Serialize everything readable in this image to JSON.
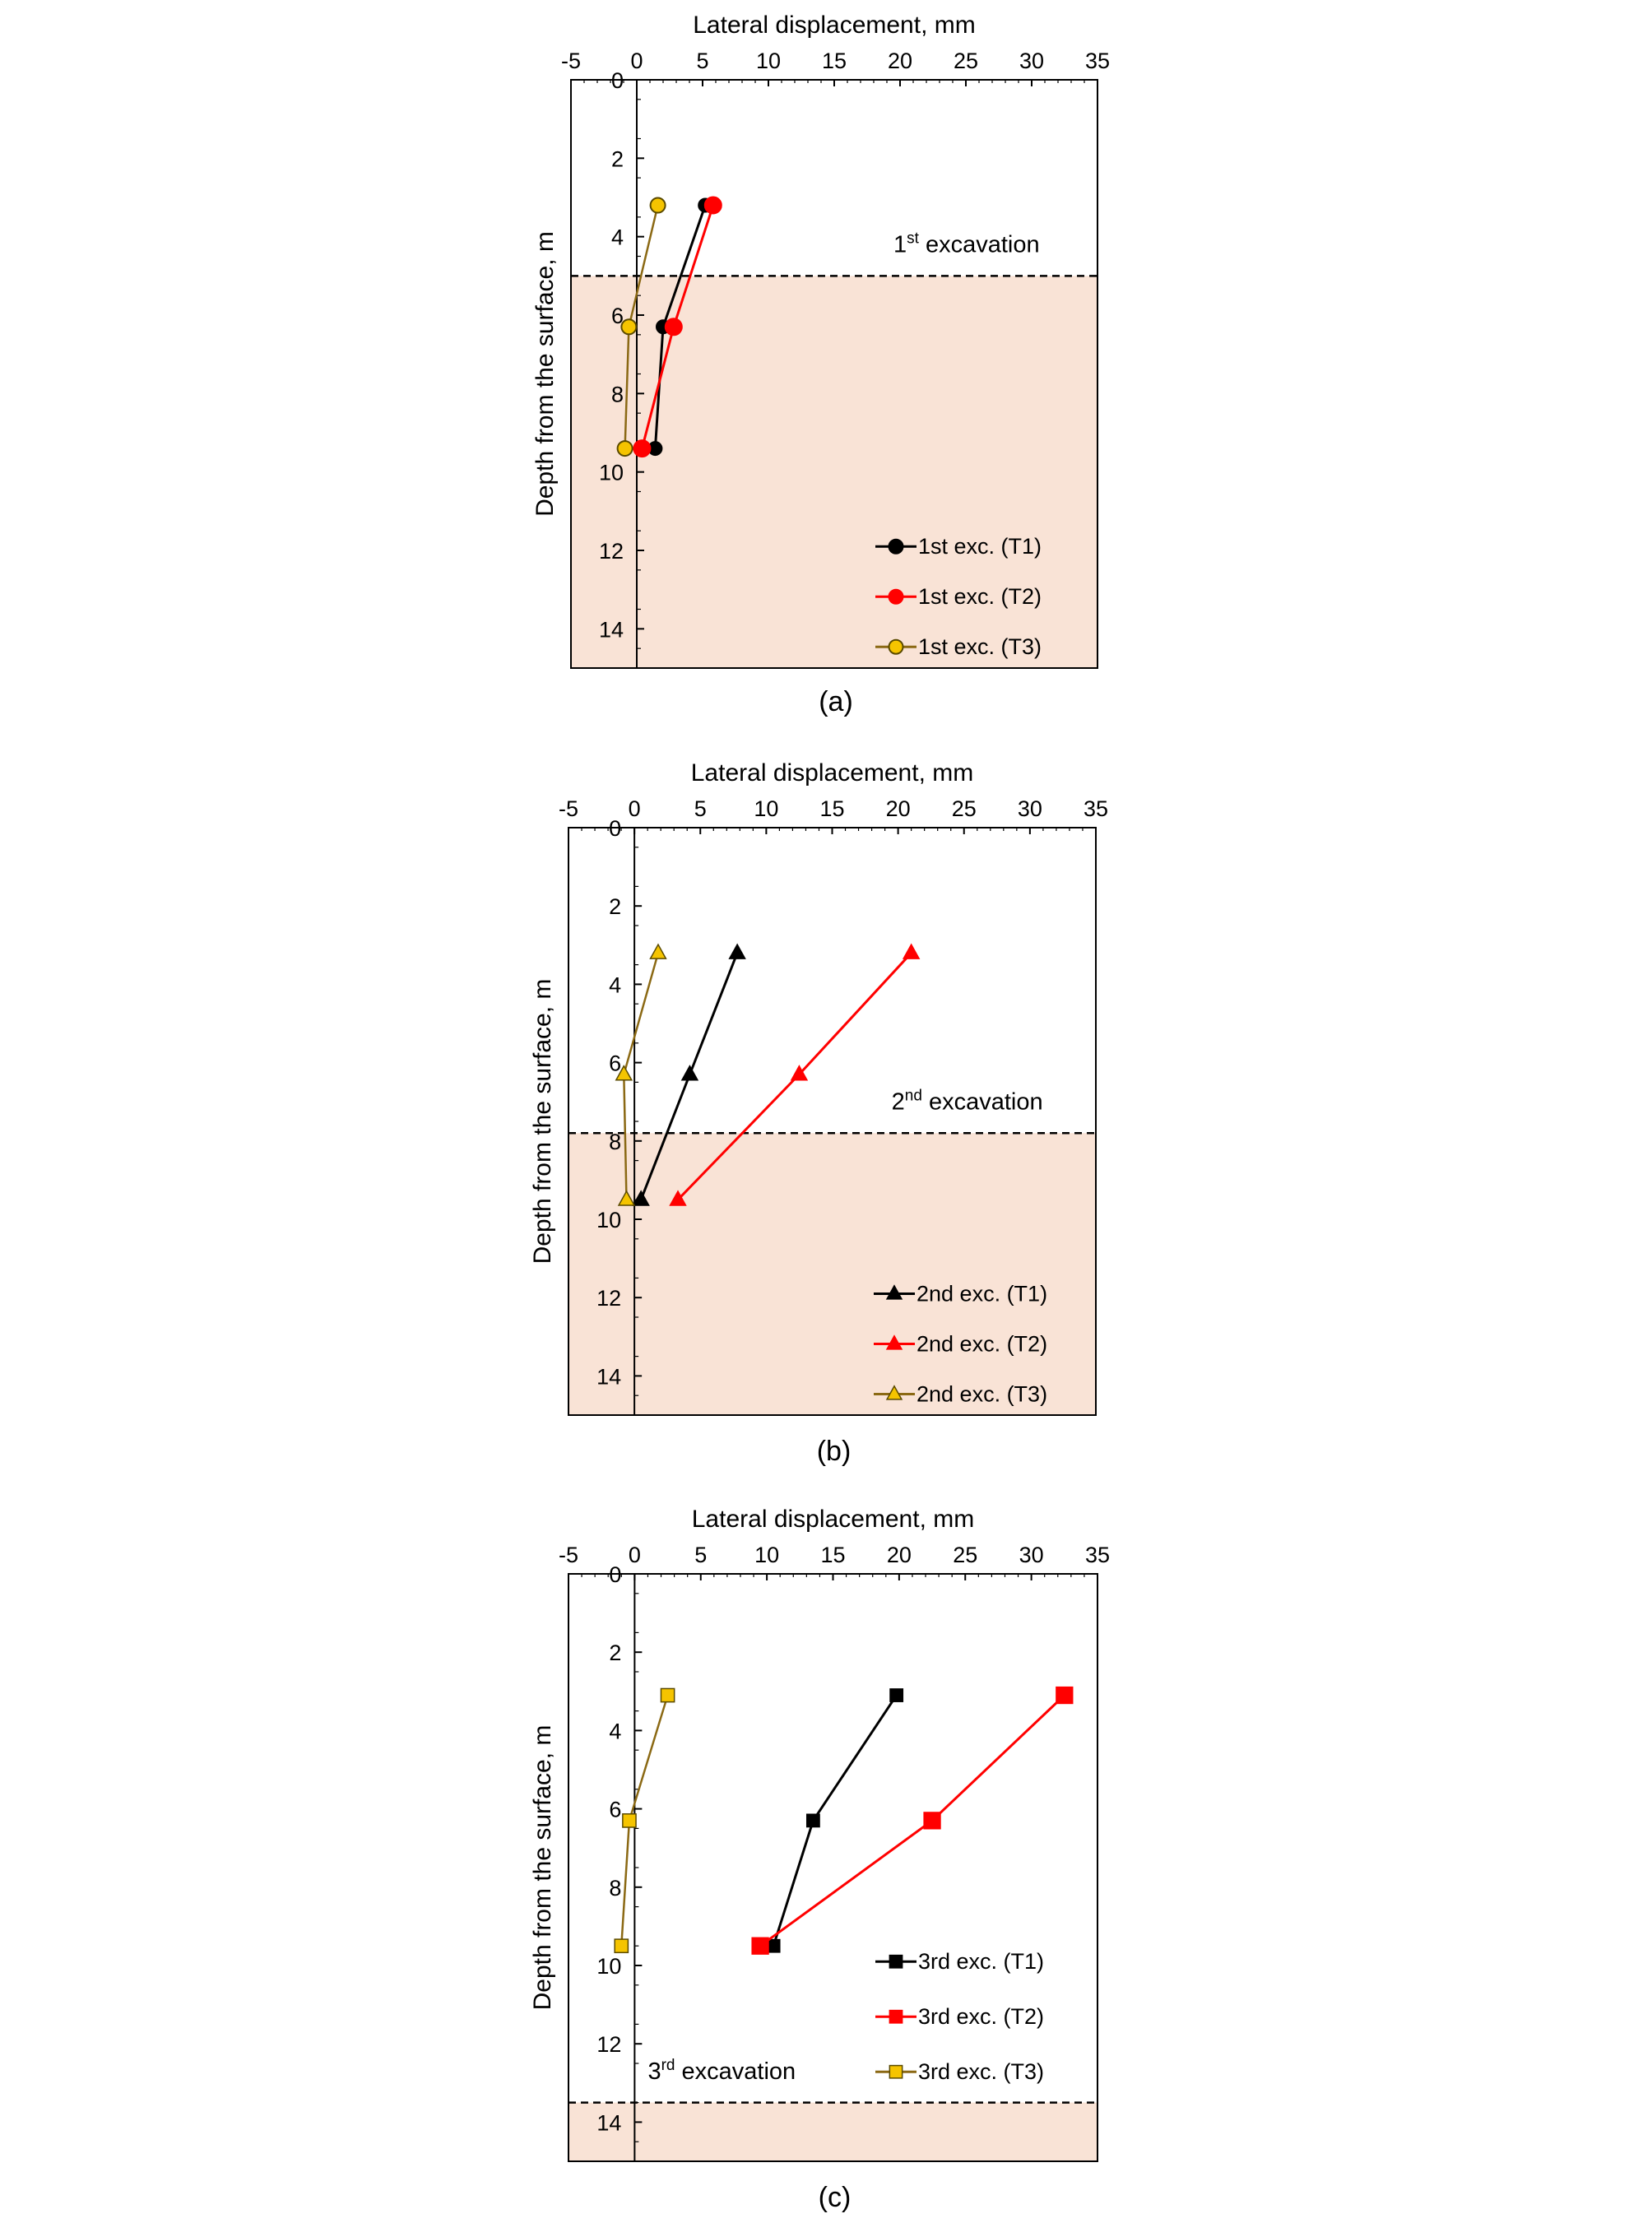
{
  "figure": {
    "colors": {
      "background": "#ffffff",
      "shade": "#f9e3d6",
      "black_series": "#000000",
      "red_series": "#ff0000",
      "gold_line": "#8b6914",
      "gold_marker": "#f5c400",
      "marker_outline": "#5a4a00"
    }
  },
  "chart_data": [
    {
      "type": "line",
      "panel_label": "(a)",
      "xlabel": "Lateral displacement, mm",
      "ylabel": "Depth from the surface, m",
      "xlim": [
        -5,
        35
      ],
      "ylim": [
        0,
        15
      ],
      "x_axis_position": "top",
      "y_inverted": true,
      "grid": false,
      "x_ticks": [
        "-5",
        "0",
        "5",
        "10",
        "15",
        "20",
        "25",
        "30",
        "35"
      ],
      "y_ticks": [
        "0",
        "2",
        "4",
        "6",
        "8",
        "10",
        "12",
        "14"
      ],
      "excavation": {
        "depth": 5.0,
        "label_main": "1",
        "label_sup": "st",
        "label_rest": " excavation",
        "label_x": 19.5,
        "label_y": 4.4
      },
      "legend_position": "bottom-right",
      "marker": "circle",
      "series": [
        {
          "name": "1st exc. (T1)",
          "color": "#000000",
          "x": [
            5.2,
            2.0,
            1.4
          ],
          "y": [
            3.2,
            6.3,
            9.4
          ]
        },
        {
          "name": "1st exc. (T2)",
          "color": "#ff0000",
          "x": [
            5.8,
            2.8,
            0.4
          ],
          "y": [
            3.2,
            6.3,
            9.4
          ]
        },
        {
          "name": "1st exc. (T3)",
          "color": "#8b6914",
          "x": [
            1.6,
            -0.6,
            -0.9
          ],
          "y": [
            3.2,
            6.3,
            9.4
          ]
        }
      ]
    },
    {
      "type": "line",
      "panel_label": "(b)",
      "xlabel": "Lateral displacement, mm",
      "ylabel": "Depth from the surface, m",
      "xlim": [
        -5,
        35
      ],
      "ylim": [
        0,
        15
      ],
      "x_axis_position": "top",
      "y_inverted": true,
      "grid": false,
      "x_ticks": [
        "-5",
        "0",
        "5",
        "10",
        "15",
        "20",
        "25",
        "30",
        "35"
      ],
      "y_ticks": [
        "0",
        "2",
        "4",
        "6",
        "8",
        "10",
        "12",
        "14"
      ],
      "excavation": {
        "depth": 7.8,
        "label_main": "2",
        "label_sup": "nd",
        "label_rest": " excavation",
        "label_x": 19.5,
        "label_y": 7.2
      },
      "legend_position": "bottom-right",
      "marker": "triangle",
      "series": [
        {
          "name": "2nd exc. (T1)",
          "color": "#000000",
          "x": [
            7.8,
            4.2,
            0.5
          ],
          "y": [
            3.2,
            6.3,
            9.5
          ]
        },
        {
          "name": "2nd exc. (T2)",
          "color": "#ff0000",
          "x": [
            21.0,
            12.5,
            3.3
          ],
          "y": [
            3.2,
            6.3,
            9.5
          ]
        },
        {
          "name": "2nd exc. (T3)",
          "color": "#8b6914",
          "x": [
            1.8,
            -0.8,
            -0.6
          ],
          "y": [
            3.2,
            6.3,
            9.5
          ]
        }
      ]
    },
    {
      "type": "line",
      "panel_label": "(c)",
      "xlabel": "Lateral displacement, mm",
      "ylabel": "Depth from the surface, m",
      "xlim": [
        -5,
        35
      ],
      "ylim": [
        0,
        15
      ],
      "x_axis_position": "top",
      "y_inverted": true,
      "grid": false,
      "x_ticks": [
        "-5",
        "0",
        "5",
        "10",
        "15",
        "20",
        "25",
        "30",
        "35"
      ],
      "y_ticks": [
        "0",
        "2",
        "4",
        "6",
        "8",
        "10",
        "12",
        "14"
      ],
      "excavation": {
        "depth": 13.5,
        "label_main": "3",
        "label_sup": "rd",
        "label_rest": " excavation",
        "label_x": 1.0,
        "label_y": 12.9
      },
      "legend_position": "bottom-right",
      "marker": "square",
      "series": [
        {
          "name": "3rd exc. (T1)",
          "color": "#000000",
          "x": [
            19.8,
            13.5,
            10.5
          ],
          "y": [
            3.1,
            6.3,
            9.5
          ]
        },
        {
          "name": "3rd exc. (T2)",
          "color": "#ff0000",
          "x": [
            32.5,
            22.5,
            9.5
          ],
          "y": [
            3.1,
            6.3,
            9.5
          ]
        },
        {
          "name": "3rd exc. (T3)",
          "color": "#8b6914",
          "x": [
            2.5,
            -0.4,
            -1.0
          ],
          "y": [
            3.1,
            6.3,
            9.5
          ]
        }
      ]
    }
  ]
}
